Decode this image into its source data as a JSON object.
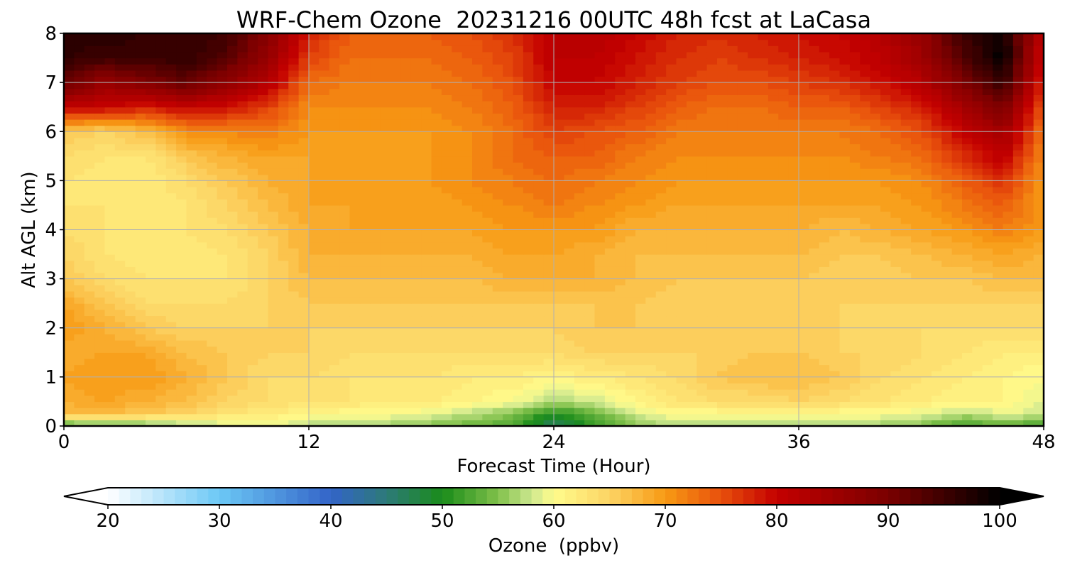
{
  "chart_data": {
    "type": "heatmap",
    "title": "WRF-Chem Ozone  20231216 00UTC 48h fcst at LaCasa",
    "xlabel": "Forecast Time (Hour)",
    "ylabel": "Alt AGL (km)",
    "x_ticks": [
      0,
      12,
      24,
      36,
      48
    ],
    "y_ticks": [
      0,
      1,
      2,
      3,
      4,
      5,
      6,
      7,
      8
    ],
    "xlim": [
      0,
      48
    ],
    "ylim": [
      0,
      8
    ],
    "grid": true,
    "x_step_hours": 2,
    "altitudes_km": [
      0,
      0.25,
      0.5,
      1,
      1.5,
      2,
      2.5,
      3,
      3.5,
      4,
      4.5,
      5,
      5.5,
      6,
      6.5,
      7,
      7.5,
      8
    ],
    "times_hours": [
      0,
      2,
      4,
      6,
      8,
      10,
      12,
      14,
      16,
      18,
      20,
      22,
      24,
      26,
      28,
      30,
      32,
      34,
      36,
      38,
      40,
      42,
      44,
      46,
      48
    ],
    "ozone_ppbv": [
      [
        52,
        53,
        54,
        56,
        58,
        59,
        57,
        56,
        56,
        55,
        54,
        52,
        46,
        51,
        56,
        57,
        57,
        57,
        57,
        57,
        56,
        55,
        52,
        53,
        52
      ],
      [
        67,
        67,
        66,
        65,
        63,
        62,
        61,
        60,
        60,
        59,
        57,
        55,
        50,
        54,
        58,
        60,
        60,
        60,
        60,
        60,
        60,
        59,
        57,
        59,
        58
      ],
      [
        68,
        69,
        68,
        67,
        65,
        64,
        63,
        63,
        62,
        62,
        61,
        60,
        57,
        58,
        61,
        63,
        64,
        64,
        65,
        64,
        63,
        62,
        61,
        61,
        59
      ],
      [
        69,
        70,
        70,
        68,
        66,
        64,
        64,
        63,
        63,
        63,
        62,
        62,
        61,
        62,
        63,
        64,
        66,
        67,
        67,
        66,
        64,
        63,
        62,
        61,
        60
      ],
      [
        68,
        69,
        69,
        67,
        66,
        65,
        65,
        64,
        64,
        64,
        64,
        64,
        64,
        65,
        65,
        65,
        65,
        66,
        66,
        65,
        65,
        64,
        63,
        62,
        62
      ],
      [
        70,
        68,
        66,
        65,
        65,
        65,
        65,
        65,
        65,
        65,
        65,
        65,
        65,
        66,
        66,
        65,
        65,
        65,
        65,
        65,
        64,
        64,
        64,
        64,
        64
      ],
      [
        69,
        66,
        64,
        64,
        64,
        65,
        66,
        66,
        66,
        66,
        66,
        66,
        66,
        66,
        66,
        65,
        65,
        65,
        65,
        65,
        65,
        65,
        65,
        65,
        65
      ],
      [
        66,
        64,
        63,
        63,
        63,
        65,
        67,
        67,
        67,
        67,
        67,
        68,
        68,
        68,
        67,
        66,
        66,
        66,
        66,
        65,
        65,
        66,
        66,
        67,
        67
      ],
      [
        65,
        63,
        62,
        62,
        63,
        65,
        68,
        68,
        68,
        68,
        68,
        69,
        69,
        68,
        67,
        67,
        67,
        67,
        67,
        66,
        66,
        67,
        68,
        69,
        68
      ],
      [
        64,
        63,
        62,
        63,
        64,
        66,
        68,
        69,
        69,
        69,
        69,
        70,
        70,
        70,
        68,
        68,
        68,
        68,
        68,
        67,
        68,
        69,
        70,
        72,
        70
      ],
      [
        63,
        63,
        62,
        63,
        65,
        67,
        69,
        69,
        69,
        69,
        70,
        71,
        72,
        71,
        70,
        69,
        69,
        69,
        69,
        69,
        69,
        70,
        72,
        74,
        70
      ],
      [
        63,
        62,
        62,
        64,
        66,
        68,
        69,
        69,
        69,
        70,
        71,
        72,
        73,
        72,
        71,
        70,
        70,
        70,
        70,
        70,
        70,
        71,
        74,
        77,
        70
      ],
      [
        64,
        63,
        63,
        66,
        68,
        69,
        69,
        69,
        69,
        70,
        71,
        73,
        74,
        74,
        72,
        71,
        71,
        71,
        71,
        71,
        72,
        73,
        77,
        81,
        71
      ],
      [
        66,
        65,
        67,
        71,
        71,
        72,
        70,
        70,
        70,
        70,
        71,
        73,
        76,
        75,
        74,
        72,
        72,
        72,
        72,
        72,
        73,
        75,
        80,
        85,
        72
      ],
      [
        80,
        80,
        78,
        80,
        79,
        76,
        71,
        71,
        71,
        71,
        72,
        74,
        78,
        78,
        76,
        74,
        73,
        73,
        74,
        74,
        76,
        78,
        84,
        90,
        74
      ],
      [
        92,
        86,
        89,
        92,
        87,
        82,
        73,
        72,
        72,
        72,
        73,
        75,
        80,
        80,
        78,
        76,
        75,
        75,
        76,
        77,
        79,
        82,
        89,
        96,
        77
      ],
      [
        96,
        95,
        95,
        96,
        93,
        86,
        76,
        73,
        73,
        73,
        74,
        76,
        81,
        81,
        79,
        77,
        76,
        77,
        78,
        79,
        81,
        85,
        93,
        100,
        79
      ],
      [
        97,
        97,
        96,
        96,
        95,
        88,
        78,
        74,
        74,
        74,
        75,
        77,
        81,
        82,
        80,
        78,
        77,
        78,
        79,
        80,
        82,
        86,
        95,
        99,
        80
      ]
    ]
  },
  "colorbar": {
    "label": "Ozone  (ppbv)",
    "ticks": [
      20,
      30,
      40,
      50,
      60,
      70,
      80,
      90,
      100
    ],
    "min": 20,
    "max": 100,
    "step": 1,
    "extend": "both",
    "under_color": "#ffffff",
    "over_color": "#000000",
    "color_stops": [
      {
        "value": 20,
        "color": "#ffffff"
      },
      {
        "value": 30,
        "color": "#6cc8f5"
      },
      {
        "value": 40,
        "color": "#3364c8"
      },
      {
        "value": 45,
        "color": "#2d7a78"
      },
      {
        "value": 50,
        "color": "#1a8c1a"
      },
      {
        "value": 55,
        "color": "#80c04a"
      },
      {
        "value": 58,
        "color": "#cde890"
      },
      {
        "value": 60,
        "color": "#fffc8c"
      },
      {
        "value": 65,
        "color": "#fcd464"
      },
      {
        "value": 70,
        "color": "#f89a14"
      },
      {
        "value": 75,
        "color": "#e8500c"
      },
      {
        "value": 80,
        "color": "#c40000"
      },
      {
        "value": 90,
        "color": "#7a0000"
      },
      {
        "value": 100,
        "color": "#000000"
      }
    ]
  },
  "colors": {
    "grid": "#b0b0b0",
    "axis": "#000000"
  }
}
